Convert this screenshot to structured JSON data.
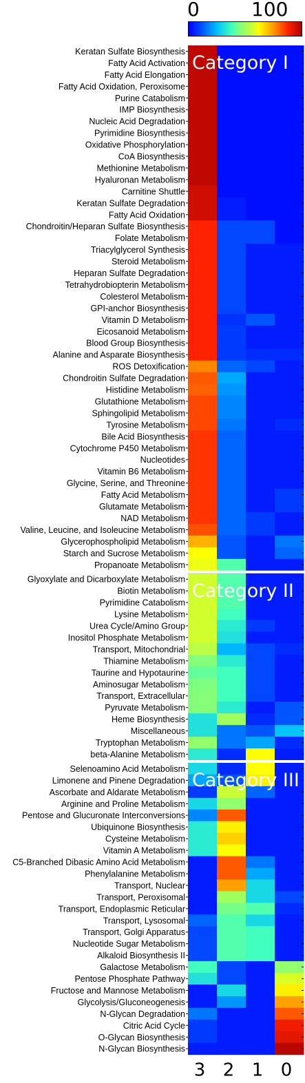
{
  "colorbar": {
    "min_label": "0",
    "max_label": "100"
  },
  "chart_data": {
    "type": "heatmap",
    "value_range": [
      0,
      100
    ],
    "columns": [
      "3",
      "2",
      "1",
      "0"
    ],
    "categories": [
      {
        "label": "Category I",
        "start_row": 0
      },
      {
        "label": "Category II",
        "start_row": 45
      },
      {
        "label": "Category III",
        "start_row": 61
      }
    ],
    "rows": [
      "Keratan Sulfate Biosynthesis",
      "Fatty Acid Activation",
      "Fatty Acid Elongation",
      "Fatty Acid Oxidation, Peroxisome",
      "Purine Catabolism",
      "IMP Biosynthesis",
      "Nucleic Acid Degradation",
      "Pyrimidine Biosynthesis",
      "Oxidative Phosphorylation",
      "CoA Biosynthesis",
      "Methionine Metabolism",
      "Hyaluronan Metabolism",
      "Carnitine Shuttle",
      "Keratan Sulfate Degradation",
      "Fatty Acid Oxidation",
      "Chondroitin/Heparan Sulfate Biosynthesis",
      "Folate Metabolism",
      "Triacylglycerol Synthesis",
      "Steroid Metabolism",
      "Heparan Sulfate Degradation",
      "Tetrahydrobiopterin Metabolism",
      "Colesterol Metabolism",
      "GPI-anchor Biosynthesis",
      "Vitamin D Metabolism",
      "Eicosanoid Metabolism",
      "Blood Group Biosynthesis",
      "Alanine and Asparate Biosynthesis",
      "ROS Detoxification",
      "Chondroitin Sulfate Degradation",
      "Histidine Metabolism",
      "Glutathione Metabolism",
      "Sphingolipid Metabolism",
      "Tyrosine Metabolism",
      "Bile Acid Biosynthesis",
      "Cytochrome P450 Metabolism",
      "Nucleotides",
      "Vitamin B6 Metabolism",
      "Glycine, Serine, and Threonine",
      "Fatty Acid Metabolism",
      "Glutamate Metabolism",
      "NAD Metabolism",
      "Valine, Leucine, and Isoleucine Metabolism",
      "Glycerophospholipid Metabolism",
      "Starch and Sucrose Metabolism",
      "Propanoate Metabolism",
      "Glyoxylate and Dicarboxylate Metabolism",
      "Biotin Metabolism",
      "Pyrimidine Catabolism",
      "Lysine Metabolism",
      "Urea Cycle/Amino Group",
      "Inositol Phosphate Metabolism",
      "Transport, Mitochondrial",
      "Thiamine Metabolism",
      "Taurine and Hypotaurine",
      "Aminosugar Metabolism",
      "Transport, Extracellular",
      "Pyruvate Metabolism",
      "Heme Biosynthesis",
      "Miscellaneous",
      "Tryptophan Metabolism",
      "beta-Alanine Metabolism",
      "Selenoamino Acid Metabolism",
      "Limonene and Pinene Degradation",
      "Ascorbate and Aldarate Metabolism",
      "Arginine and Proline Metabolism",
      "Pentose and Glucuronate Interconversions",
      "Ubiquinone Biosynthesis",
      "Cysteine Metabolism",
      "Vitamin A Metabolism",
      "C5-Branched Dibasic Amino Acid Metabolism",
      "Phenylalanine Metabolism",
      "Transport, Nuclear",
      "Transport, Peroxisomal",
      "Transport, Endoplasmic Reticular",
      "Transport, Lysosomal",
      "Transport, Golgi Apparatus",
      "Nucleotide Sugar Metabolism",
      "Alkaloid Biosynthesis II",
      "Galactose Metabolism",
      "Pentose Phosphate Pathway",
      "Fructose and Mannose Metabolism",
      "Glycolysis/Gluconeogenesis",
      "N-Glycan Degradation",
      "Citric Acid Cycle",
      "O-Glycan Biosynthesis",
      "N-Glycan Biosynthesis"
    ],
    "values": [
      [
        97,
        2,
        2,
        2
      ],
      [
        97,
        2,
        2,
        2
      ],
      [
        97,
        2,
        2,
        2
      ],
      [
        97,
        2,
        2,
        2
      ],
      [
        97,
        2,
        2,
        2
      ],
      [
        97,
        2,
        2,
        2
      ],
      [
        97,
        2,
        2,
        2
      ],
      [
        97,
        2,
        2,
        2
      ],
      [
        97,
        2,
        2,
        2
      ],
      [
        97,
        2,
        2,
        2
      ],
      [
        97,
        2,
        2,
        2
      ],
      [
        97,
        2,
        2,
        2
      ],
      [
        95,
        2,
        2,
        2
      ],
      [
        95,
        4,
        2,
        2
      ],
      [
        95,
        4,
        2,
        2
      ],
      [
        88,
        10,
        10,
        2
      ],
      [
        88,
        10,
        10,
        2
      ],
      [
        88,
        10,
        4,
        4
      ],
      [
        88,
        10,
        4,
        4
      ],
      [
        88,
        10,
        4,
        4
      ],
      [
        88,
        10,
        4,
        4
      ],
      [
        88,
        10,
        4,
        4
      ],
      [
        88,
        10,
        4,
        4
      ],
      [
        88,
        7,
        12,
        4
      ],
      [
        88,
        8,
        4,
        4
      ],
      [
        88,
        8,
        4,
        4
      ],
      [
        88,
        8,
        6,
        6
      ],
      [
        77,
        14,
        10,
        4
      ],
      [
        82,
        22,
        4,
        4
      ],
      [
        81,
        20,
        4,
        4
      ],
      [
        84,
        18,
        4,
        4
      ],
      [
        84,
        18,
        4,
        4
      ],
      [
        84,
        16,
        4,
        6
      ],
      [
        86,
        14,
        4,
        4
      ],
      [
        86,
        14,
        4,
        4
      ],
      [
        86,
        14,
        4,
        4
      ],
      [
        86,
        14,
        4,
        4
      ],
      [
        86,
        14,
        4,
        4
      ],
      [
        86,
        14,
        4,
        8
      ],
      [
        86,
        14,
        4,
        8
      ],
      [
        86,
        14,
        8,
        4
      ],
      [
        83,
        14,
        8,
        4
      ],
      [
        72,
        12,
        4,
        16
      ],
      [
        62,
        12,
        4,
        14
      ],
      [
        60,
        40,
        4,
        4
      ],
      [
        57,
        40,
        4,
        4
      ],
      [
        57,
        40,
        4,
        4
      ],
      [
        57,
        40,
        4,
        4
      ],
      [
        57,
        38,
        4,
        4
      ],
      [
        57,
        34,
        8,
        4
      ],
      [
        57,
        32,
        4,
        4
      ],
      [
        54,
        24,
        10,
        6
      ],
      [
        46,
        34,
        10,
        4
      ],
      [
        42,
        38,
        10,
        4
      ],
      [
        45,
        38,
        10,
        4
      ],
      [
        46,
        38,
        10,
        4
      ],
      [
        46,
        34,
        4,
        12
      ],
      [
        32,
        50,
        6,
        12
      ],
      [
        32,
        16,
        12,
        26
      ],
      [
        48,
        16,
        22,
        6
      ],
      [
        34,
        6,
        62,
        4
      ],
      [
        30,
        6,
        62,
        4
      ],
      [
        22,
        12,
        64,
        4
      ],
      [
        8,
        56,
        14,
        4
      ],
      [
        30,
        48,
        4,
        4
      ],
      [
        18,
        82,
        4,
        4
      ],
      [
        34,
        64,
        4,
        4
      ],
      [
        34,
        68,
        4,
        4
      ],
      [
        34,
        62,
        4,
        4
      ],
      [
        4,
        82,
        16,
        4
      ],
      [
        4,
        82,
        22,
        4
      ],
      [
        4,
        74,
        30,
        4
      ],
      [
        4,
        50,
        30,
        10
      ],
      [
        4,
        44,
        40,
        6
      ],
      [
        14,
        40,
        30,
        4
      ],
      [
        10,
        40,
        38,
        4
      ],
      [
        10,
        40,
        38,
        4
      ],
      [
        10,
        40,
        38,
        4
      ],
      [
        38,
        10,
        4,
        48
      ],
      [
        32,
        10,
        4,
        58
      ],
      [
        4,
        30,
        4,
        64
      ],
      [
        4,
        20,
        4,
        74
      ],
      [
        16,
        4,
        4,
        82
      ],
      [
        8,
        4,
        4,
        90
      ],
      [
        8,
        4,
        4,
        92
      ],
      [
        4,
        4,
        4,
        98
      ]
    ]
  }
}
